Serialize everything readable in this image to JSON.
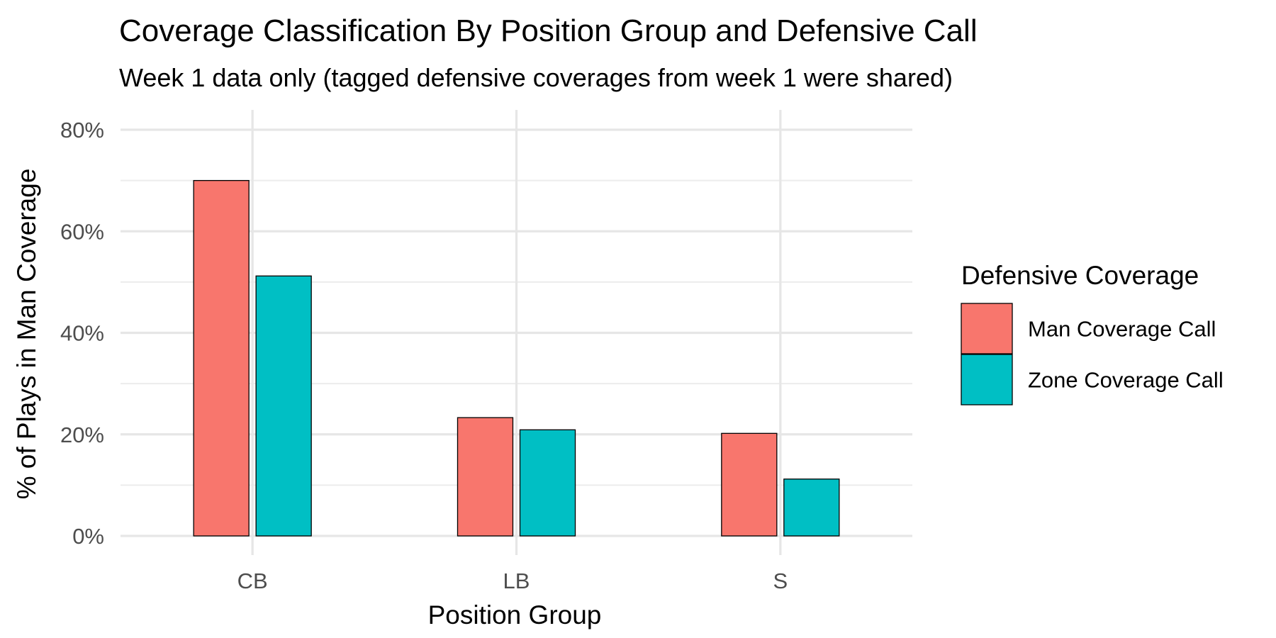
{
  "chart_data": {
    "type": "bar",
    "title": "Coverage Classification By Position Group and Defensive Call",
    "subtitle": "Week 1 data only (tagged defensive coverages from week 1 were shared)",
    "xlabel": "Position Group",
    "ylabel": "% of Plays in Man Coverage",
    "categories": [
      "CB",
      "LB",
      "S"
    ],
    "series": [
      {
        "name": "Man Coverage Call",
        "values": [
          0.7,
          0.233,
          0.202
        ],
        "color": "#F8766D"
      },
      {
        "name": "Zone Coverage Call",
        "values": [
          0.512,
          0.209,
          0.112
        ],
        "color": "#00BFC4"
      }
    ],
    "ylim": [
      0,
      0.8
    ],
    "y_ticks": [
      0,
      0.2,
      0.4,
      0.6,
      0.8
    ],
    "y_tick_labels": [
      "0%",
      "20%",
      "40%",
      "60%",
      "80%"
    ],
    "grid": true,
    "legend": {
      "title": "Defensive Coverage",
      "position": "right"
    }
  }
}
